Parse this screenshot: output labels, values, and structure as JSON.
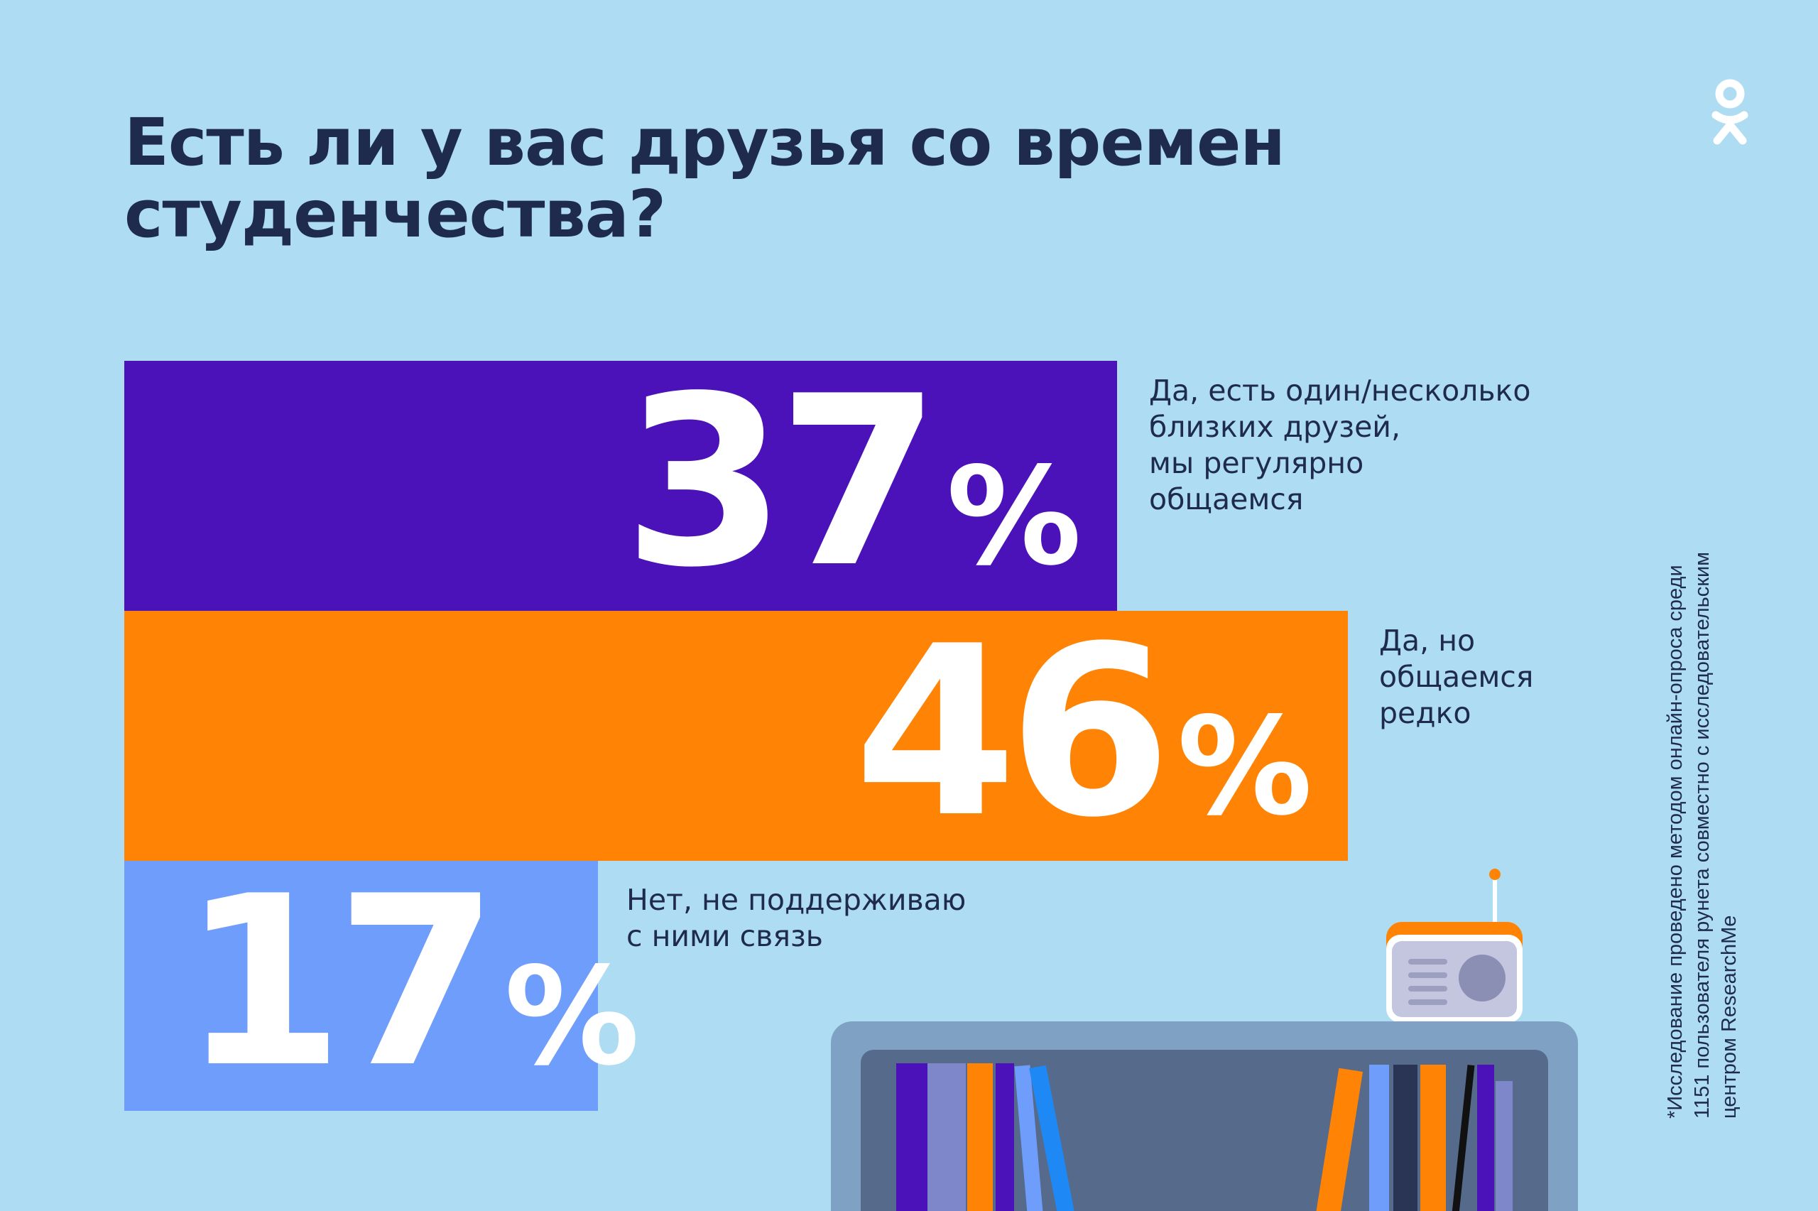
{
  "header": {
    "title": "Есть ли у вас друзья со времен студенчества?",
    "logo_icon": "odnoklassniki-logo-icon"
  },
  "chart_data": {
    "type": "bar",
    "orientation": "horizontal",
    "title": "Есть ли у вас друзья со времен студенчества?",
    "unit": "%",
    "categories": [
      "Да, есть один/несколько близких друзей, мы регулярно общаемся",
      "Да, но общаемся редко",
      "Нет, не поддерживаю с ними связь"
    ],
    "values": [
      37,
      46,
      17
    ],
    "value_labels": [
      "37",
      "46",
      "17"
    ],
    "percent_sign": "%",
    "colors": [
      "#4b12b9",
      "#ff8405",
      "#6f9dfc"
    ],
    "label_lines": [
      [
        "Да, есть один/несколько",
        "близких друзей,",
        "мы регулярно",
        "общаемся"
      ],
      [
        "Да, но",
        "общаемся",
        "редко"
      ],
      [
        "Нет, не поддерживаю",
        "с ними связь"
      ]
    ]
  },
  "footnote": {
    "lines": [
      "*Исследование проведено методом онлайн-опроса среди",
      "1151 пользователя рунета совместно с исследовательским",
      "центром ResearchMe"
    ]
  },
  "illustration": {
    "icons": [
      "radio-icon",
      "bookshelf-icon"
    ],
    "colors": {
      "background": "#aedcf2",
      "text_dark": "#1f2b4d",
      "purple": "#4b12b9",
      "orange": "#ff8405",
      "light_blue": "#6f9dfc",
      "shelf_frame": "#7fa2c4",
      "shelf_inner": "#566b8b"
    }
  }
}
